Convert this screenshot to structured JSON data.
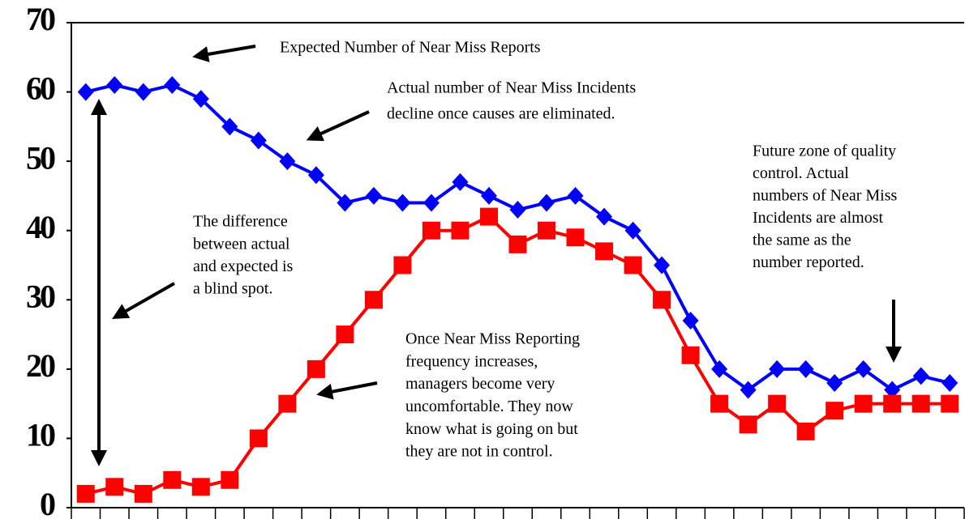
{
  "chart_data": {
    "type": "line",
    "categories": [
      null,
      null,
      null,
      null,
      null,
      null,
      null,
      null,
      null,
      null,
      null,
      null,
      null,
      null,
      null,
      null,
      null,
      null,
      null,
      null,
      null,
      null,
      null,
      null,
      null,
      null,
      null,
      null,
      null,
      null,
      null
    ],
    "series": [
      {
        "color": "#0000ff",
        "marker": "diamond",
        "values": [
          60,
          61,
          60,
          61,
          59,
          55,
          53,
          50,
          48,
          44,
          45,
          44,
          44,
          47,
          45,
          43,
          44,
          45,
          42,
          40,
          35,
          27,
          20,
          17,
          20,
          20,
          18,
          20,
          17,
          19,
          18
        ]
      },
      {
        "color": "#ff0000",
        "marker": "square",
        "values": [
          2,
          3,
          2,
          4,
          3,
          4,
          10,
          15,
          20,
          25,
          30,
          35,
          40,
          40,
          42,
          38,
          40,
          39,
          37,
          35,
          30,
          22,
          15,
          12,
          15,
          11,
          14,
          15,
          15,
          15,
          15
        ]
      }
    ],
    "ylim": [
      0,
      70
    ],
    "yticks": [
      0,
      10,
      20,
      30,
      40,
      50,
      60,
      70
    ],
    "annotations": [
      {
        "lines": [
          "Expected Number of Near Miss Reports"
        ]
      },
      {
        "lines": [
          "Actual number of Near Miss Incidents",
          "decline once causes are eliminated."
        ]
      },
      {
        "lines": [
          "Future zone of quality",
          "control. Actual",
          "numbers of Near Miss",
          "Incidents are almost",
          "the same as the",
          "number reported."
        ]
      },
      {
        "lines": [
          "The difference",
          "between actual",
          "and expected is",
          "a blind spot."
        ]
      },
      {
        "lines": [
          "Once Near Miss Reporting",
          "frequency increases,",
          "managers become very",
          "uncomfortable. They now",
          "know what is going on but",
          "they are not in control."
        ]
      }
    ]
  }
}
